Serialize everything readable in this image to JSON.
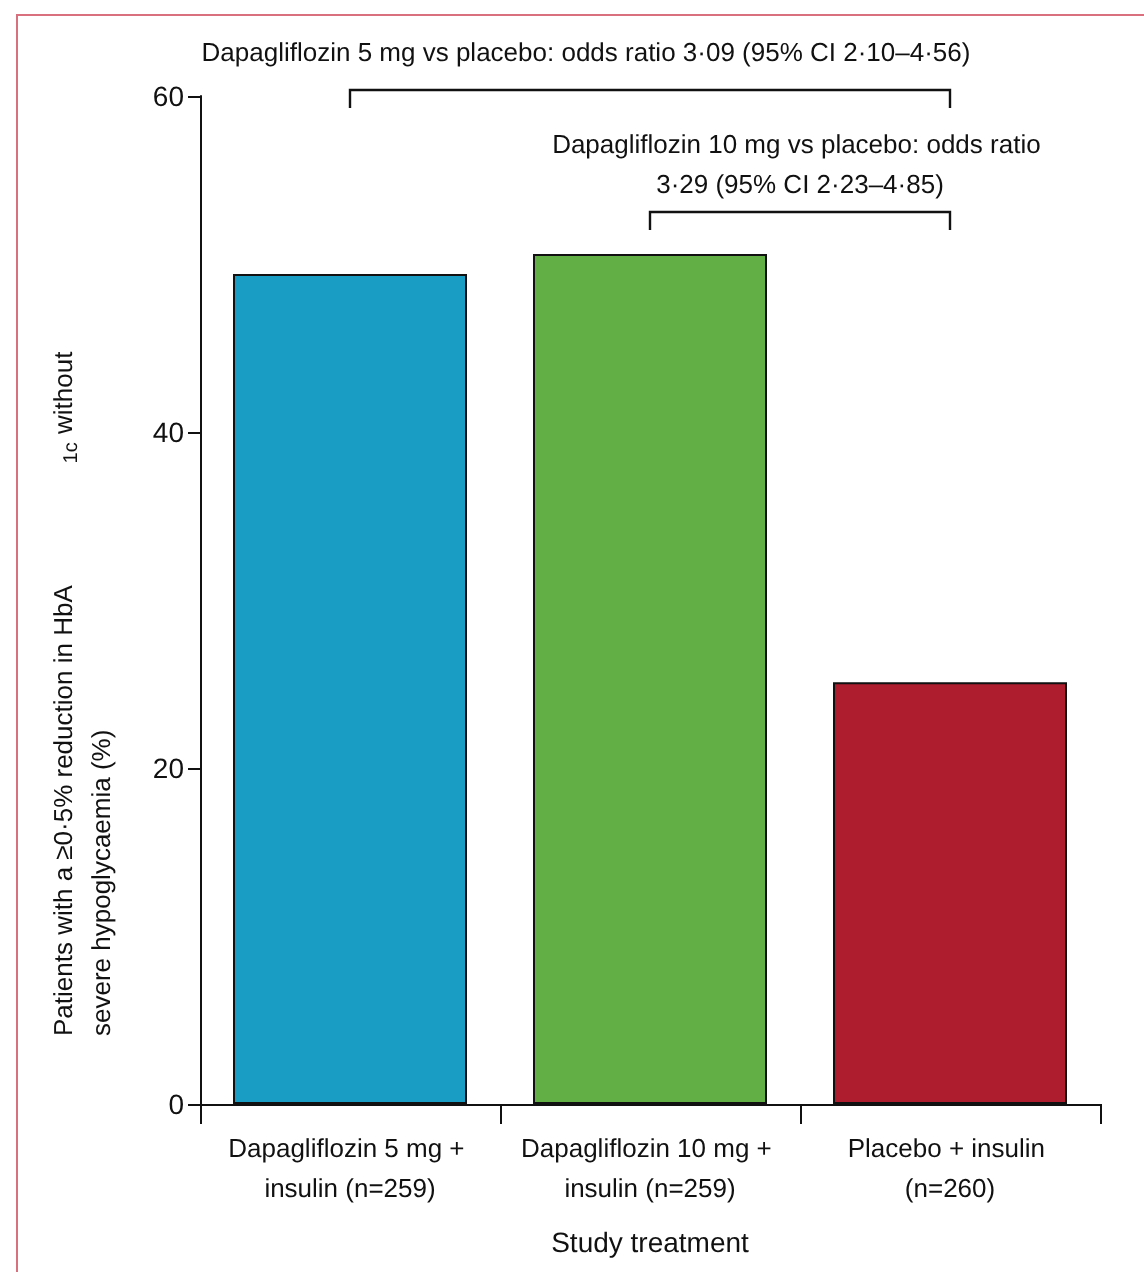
{
  "chart_data": {
    "type": "bar",
    "xlabel": "Study treatment",
    "ylabel": "Patients with a ≥0·5% reduction in HbA$_{1c}$ without severe hypoglycaemia (%)",
    "categories": [
      "Dapagliflozin 5 mg + insulin (n=259)",
      "Dapagliflozin 10 mg + insulin (n=259)",
      "Placebo + insulin (n=260)"
    ],
    "values": [
      49.4,
      50.6,
      25.1
    ],
    "colors": [
      "#1a9dc4",
      "#62b045",
      "#ae1d2d"
    ],
    "ylim": [
      0,
      60
    ],
    "yticks": [
      0,
      20,
      40,
      60
    ],
    "grid": false,
    "annotations": [
      "Dapagliflozin 5 mg vs placebo: odds ratio 3·09 (95% CI 2·10–4·56)",
      "Dapagliflozin 10 mg vs placebo: odds ratio 3·29 (95% CI 2·23–4·85)"
    ]
  }
}
